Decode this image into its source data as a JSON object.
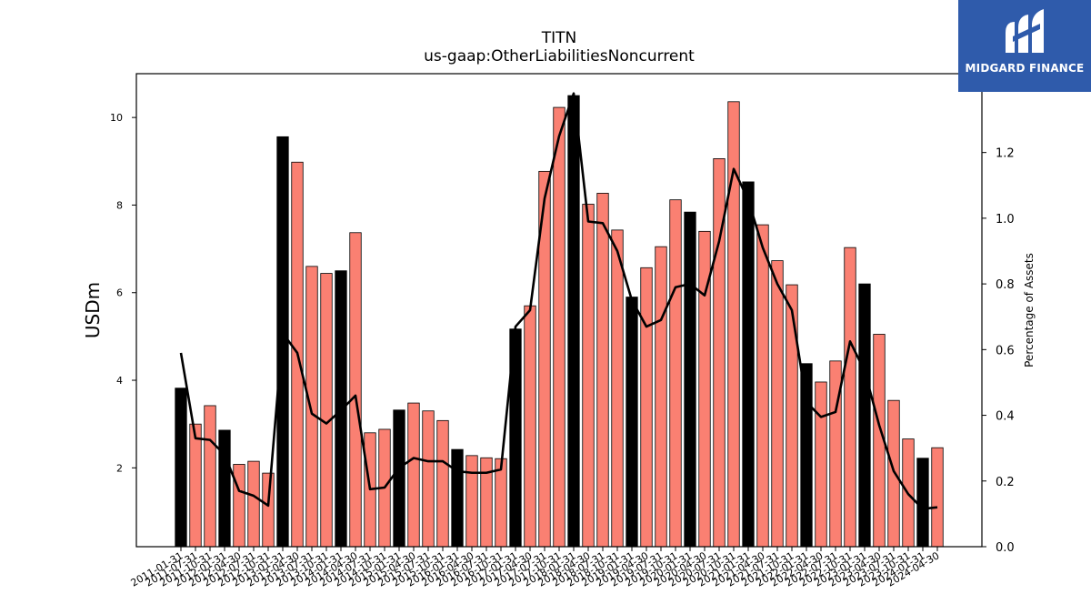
{
  "header": {
    "title": "TITN",
    "subtitle": "us-gaap:OtherLiabilitiesNoncurrent"
  },
  "logo": {
    "text": "MIDGARD FINANCE",
    "color": "#2f5bab",
    "icon": "midgard-m-logo-icon"
  },
  "colors": {
    "quarter_bar": "#fa8072",
    "fiscal_year_bar": "#000000",
    "line": "#000000"
  },
  "chart_data": {
    "type": "bar",
    "title": "TITN",
    "subtitle": "us-gaap:OtherLiabilitiesNoncurrent",
    "ylabel": "USDm",
    "y2label": "Percentage of Assets",
    "ylim": [
      0.2,
      11.0
    ],
    "y2lim": [
      0.0,
      1.44
    ],
    "yticks": [
      2,
      4,
      6,
      8,
      10
    ],
    "y2ticks": [
      0.0,
      0.2,
      0.4,
      0.6,
      0.8,
      1.0,
      1.2
    ],
    "y2tick_labels": [
      "0.0",
      "0.2",
      "0.4",
      "0.6",
      "0.8",
      "1.0",
      "1.2"
    ],
    "categories": [
      "2011-01-31",
      "2011-07-31",
      "2011-10-31",
      "2012-01-31",
      "2012-04-30",
      "2012-07-31",
      "2012-10-31",
      "2013-01-31",
      "2013-04-30",
      "2013-07-31",
      "2013-10-31",
      "2014-01-31",
      "2014-04-30",
      "2014-07-31",
      "2014-10-31",
      "2015-01-31",
      "2015-04-30",
      "2015-07-31",
      "2015-10-31",
      "2016-01-31",
      "2016-04-30",
      "2016-07-31",
      "2016-10-31",
      "2017-01-31",
      "2017-04-30",
      "2017-07-31",
      "2017-10-31",
      "2018-01-31",
      "2018-04-30",
      "2018-07-31",
      "2018-10-31",
      "2019-01-31",
      "2019-04-30",
      "2019-07-31",
      "2019-10-31",
      "2020-01-31",
      "2020-04-30",
      "2020-07-31",
      "2020-10-31",
      "2021-01-31",
      "2021-04-30",
      "2021-07-31",
      "2021-10-31",
      "2022-01-31",
      "2022-04-30",
      "2022-07-31",
      "2022-10-31",
      "2023-01-31",
      "2023-04-30",
      "2023-07-31",
      "2023-10-31",
      "2024-01-31",
      "2024-04-30"
    ],
    "series": [
      {
        "type": "bar",
        "axis": "left",
        "values": [
          3.82,
          3.0,
          3.42,
          2.86,
          2.08,
          2.15,
          1.88,
          9.56,
          8.98,
          6.6,
          6.44,
          6.5,
          7.37,
          2.8,
          2.88,
          3.32,
          3.48,
          3.3,
          3.08,
          2.42,
          2.28,
          2.23,
          2.21,
          5.17,
          5.7,
          8.77,
          10.23,
          10.5,
          8.02,
          8.27,
          7.43,
          5.9,
          6.57,
          7.05,
          8.12,
          7.84,
          7.4,
          9.06,
          10.36,
          8.53,
          7.55,
          6.73,
          6.18,
          4.38,
          3.96,
          4.44,
          7.03,
          6.2,
          5.05,
          3.54,
          2.66,
          2.22,
          2.46
        ],
        "fiscal_year_end": [
          true,
          false,
          false,
          true,
          false,
          false,
          false,
          true,
          false,
          false,
          false,
          true,
          false,
          false,
          false,
          true,
          false,
          false,
          false,
          true,
          false,
          false,
          false,
          true,
          false,
          false,
          false,
          true,
          false,
          false,
          false,
          true,
          false,
          false,
          false,
          true,
          false,
          false,
          false,
          true,
          false,
          false,
          false,
          true,
          false,
          false,
          false,
          true,
          false,
          false,
          false,
          true,
          false
        ]
      },
      {
        "type": "line",
        "axis": "right",
        "values": [
          0.59,
          0.33,
          0.325,
          0.28,
          0.17,
          0.155,
          0.125,
          0.65,
          0.59,
          0.405,
          0.375,
          0.415,
          0.46,
          0.175,
          0.18,
          0.24,
          0.27,
          0.26,
          0.26,
          0.23,
          0.225,
          0.225,
          0.235,
          0.67,
          0.72,
          1.06,
          1.25,
          1.38,
          0.99,
          0.985,
          0.9,
          0.75,
          0.67,
          0.69,
          0.79,
          0.8,
          0.765,
          0.93,
          1.15,
          1.055,
          0.91,
          0.8,
          0.72,
          0.44,
          0.395,
          0.41,
          0.625,
          0.535,
          0.37,
          0.23,
          0.16,
          0.115,
          0.12
        ]
      }
    ],
    "grid": false
  }
}
